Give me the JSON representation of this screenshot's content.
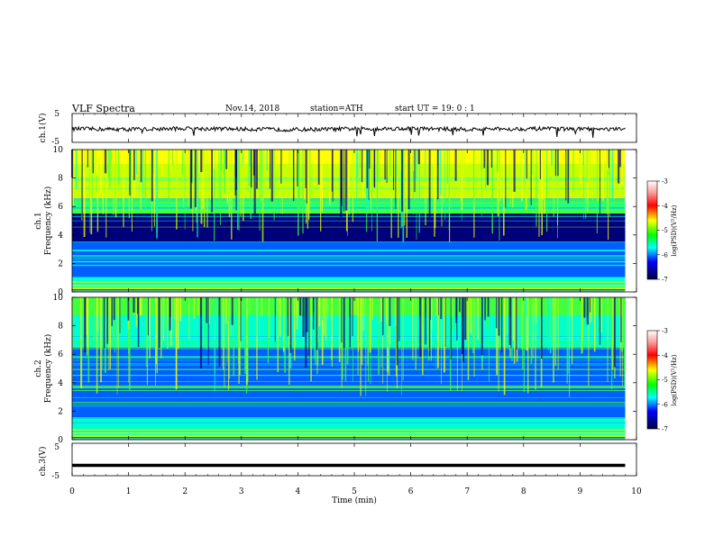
{
  "header": {
    "title": "VLF  Spectra",
    "date": "Nov.14, 2018",
    "station": "station=ATH",
    "start": "start  UT  =    19: 0   : 1"
  },
  "colorbar": {
    "label": "log(PSD)(V²/Hz)",
    "ticks": [
      "-3",
      "-4",
      "-5",
      "-6",
      "-7"
    ],
    "colors": [
      "#ffffff",
      "#ff9999",
      "#ff0000",
      "#ffff00",
      "#00ff00",
      "#00ffff",
      "#0000ff",
      "#000040"
    ]
  },
  "chart_data": [
    {
      "type": "line",
      "panel": "ch1-waveform",
      "ylabel": "ch.1(V)",
      "ylim": [
        -5,
        5
      ],
      "yticks": [
        "5",
        "-5"
      ],
      "x": [
        0,
        1,
        2,
        3,
        4,
        5,
        6,
        7,
        8,
        9,
        9.8
      ],
      "values": [
        -0.3,
        -0.5,
        -0.2,
        -0.4,
        -0.6,
        -0.3,
        -0.2,
        -0.5,
        -0.3,
        -0.4,
        -0.5
      ]
    },
    {
      "type": "heatmap",
      "panel": "ch1-spectrogram",
      "ylabel": "ch.1\nFrequency (kHz)",
      "ylim": [
        0,
        10
      ],
      "yticks": [
        "10",
        "8",
        "6",
        "4",
        "2",
        "0"
      ]
    },
    {
      "type": "heatmap",
      "panel": "ch2-spectrogram",
      "ylabel": "ch.2\nFrequency (kHz)",
      "ylim": [
        0,
        10
      ],
      "yticks": [
        "10",
        "8",
        "6",
        "4",
        "2",
        "0"
      ]
    },
    {
      "type": "line",
      "panel": "ch3-waveform",
      "ylabel": "ch.3(V)",
      "ylim": [
        -5,
        5
      ],
      "yticks": [
        "5",
        "-5"
      ],
      "x": [
        0,
        9.8
      ],
      "values": [
        -1.8,
        -1.8
      ]
    }
  ],
  "xaxis": {
    "label": "Time  (min)",
    "ticks": [
      "0",
      "1",
      "2",
      "3",
      "4",
      "5",
      "6",
      "7",
      "8",
      "9",
      "10"
    ],
    "xlim": [
      0,
      10
    ]
  }
}
